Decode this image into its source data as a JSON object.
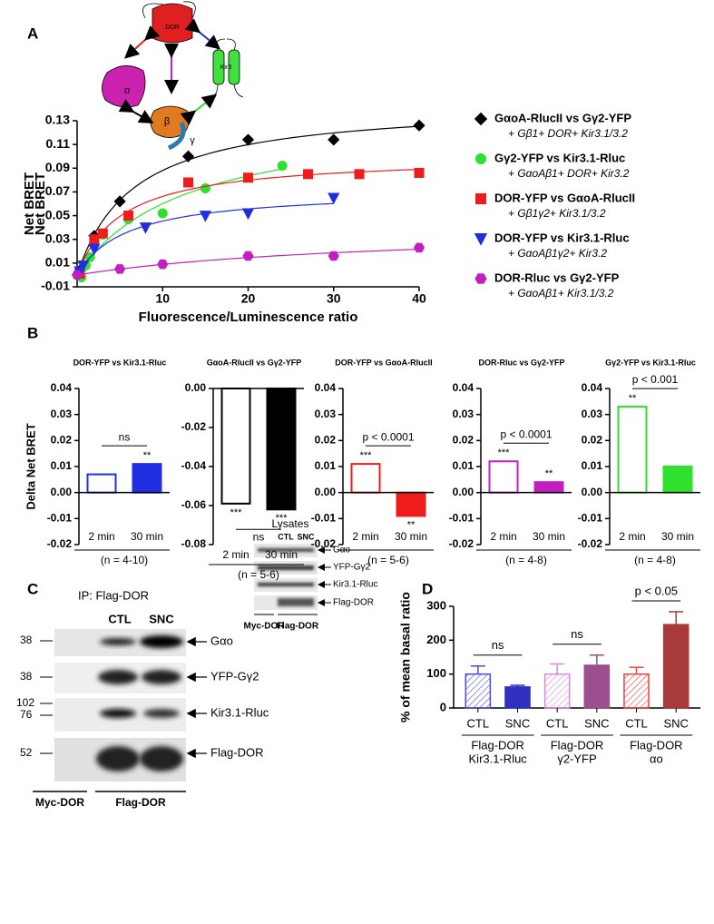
{
  "panel_labels": [
    "A",
    "B",
    "C",
    "D"
  ],
  "diagram": {
    "labels": [
      "DOR",
      "α",
      "β",
      "γ",
      "Kir3"
    ]
  },
  "chart_data": [
    {
      "type": "scatter",
      "xlabel": "Fluorescence/Luminescence ratio",
      "ylabel": "Net BRET",
      "xlim": [
        0,
        40
      ],
      "xticks": [
        10,
        20,
        30,
        40
      ],
      "ylim": [
        -0.01,
        0.13
      ],
      "yticks": [
        -0.01,
        0.01,
        0.03,
        0.05,
        0.07,
        0.09,
        0.11,
        0.13
      ],
      "series": [
        {
          "name": "GαoA-RlucII vs Gγ2-YFP",
          "note": "+ Gβ1+ DOR+ Kir3.1/3.2",
          "color": "#000000",
          "marker": "diamond",
          "x": [
            0.5,
            2,
            5,
            13,
            20,
            30,
            40
          ],
          "values": [
            0.005,
            0.033,
            0.062,
            0.1,
            0.114,
            0.114,
            0.126
          ]
        },
        {
          "name": "Gγ2-YFP vs Kir3.1-Rluc",
          "note": "+ GαoAβ1+ DOR+ Kir3.2",
          "color": "#2fe02f",
          "marker": "circle",
          "x": [
            0.5,
            1,
            1.5,
            3,
            6,
            10,
            15,
            24
          ],
          "values": [
            -0.002,
            0.008,
            0.015,
            0.034,
            0.047,
            0.052,
            0.073,
            0.092
          ]
        },
        {
          "name": "DOR-YFP vs GαoA-RlucII",
          "note": "+ Gβ1γ2+ Kir3.1/3.2",
          "color": "#ee1c1c",
          "marker": "square",
          "x": [
            0.3,
            2,
            3,
            6,
            13,
            20,
            27,
            33,
            40
          ],
          "values": [
            0.001,
            0.03,
            0.035,
            0.05,
            0.078,
            0.082,
            0.085,
            0.085,
            0.086
          ]
        },
        {
          "name": "DOR-YFP vs Kir3.1-Rluc",
          "note": "+ GαoAβ1γ2+ Kir3.2",
          "color": "#1f2fe0",
          "marker": "triangle",
          "x": [
            0.3,
            0.7,
            2,
            8,
            15,
            20,
            30
          ],
          "values": [
            0.003,
            0.008,
            0.022,
            0.04,
            0.05,
            0.052,
            0.065
          ]
        },
        {
          "name": "DOR-Rluc vs Gγ2-YFP",
          "note": "+ GαoAβ1+ Kir3.1/3.2",
          "color": "#c21fc2",
          "marker": "hexagon",
          "x": [
            0,
            5,
            10,
            20,
            30,
            40
          ],
          "values": [
            0,
            0.005,
            0.009,
            0.016,
            0.016,
            0.023
          ]
        }
      ]
    },
    {
      "type": "bar",
      "title": "DOR-YFP vs Kir3.1-Rluc",
      "ylabel": "Delta Net BRET",
      "categories": [
        "2 min",
        "30 min"
      ],
      "values": [
        0.007,
        0.011
      ],
      "color": "#1f2fe0",
      "fill_styles": [
        "hollow",
        "solid"
      ],
      "stars": [
        null,
        "**"
      ],
      "comparison": "ns",
      "n": "(n = 4-10)",
      "ylim": [
        -0.02,
        0.04
      ],
      "yticks": [
        -0.02,
        -0.01,
        {
          "value": 0,
          "label": "0.00"
        },
        0.01,
        0.02,
        0.03,
        0.04
      ]
    },
    {
      "type": "bar",
      "title": "GαoA-RlucII vs Gγ2-YFP",
      "categories": [
        "2 min",
        "30 min"
      ],
      "values": [
        -0.059,
        -0.062
      ],
      "color": "#000000",
      "fill_styles": [
        "hollow",
        "solid"
      ],
      "stars": [
        "***",
        "***"
      ],
      "comparison": "ns",
      "n": "(n = 5-6)",
      "ylim": [
        -0.08,
        0
      ],
      "yticks": [
        -0.08,
        -0.06,
        -0.04,
        -0.02,
        {
          "value": 0,
          "label": "0.00"
        }
      ]
    },
    {
      "type": "bar",
      "title": "DOR-YFP vs GαoA-RlucII",
      "categories": [
        "2 min",
        "30 min"
      ],
      "values": [
        0.011,
        -0.009
      ],
      "color": "#ee1c1c",
      "fill_styles": [
        "hollow",
        "solid"
      ],
      "stars": [
        "***",
        "**"
      ],
      "comparison": "p < 0.0001",
      "n": "(n = 5-6)",
      "ylim": [
        -0.02,
        0.04
      ],
      "yticks": [
        -0.02,
        -0.01,
        {
          "value": 0,
          "label": "0.00"
        },
        0.01,
        0.02,
        0.03,
        0.04
      ]
    },
    {
      "type": "bar",
      "title": "DOR-Rluc vs Gγ2-YFP",
      "categories": [
        "2 min",
        "30 min"
      ],
      "values": [
        0.012,
        0.004
      ],
      "color": "#c21fc2",
      "fill_styles": [
        "hollow",
        "solid"
      ],
      "stars": [
        "***",
        "**"
      ],
      "comparison": "p < 0.0001",
      "n": "(n = 4-8)",
      "ylim": [
        -0.02,
        0.04
      ],
      "yticks": [
        -0.02,
        -0.01,
        {
          "value": 0,
          "label": "0.00"
        },
        0.01,
        0.02,
        0.03,
        0.04
      ]
    },
    {
      "type": "bar",
      "title": "Gγ2-YFP vs Kir3.1-Rluc",
      "categories": [
        "2 min",
        "30 min"
      ],
      "values": [
        0.033,
        0.01
      ],
      "color": "#2fe02f",
      "fill_styles": [
        "hollow",
        "solid"
      ],
      "stars": [
        "**",
        null
      ],
      "comparison": "p < 0.001",
      "n": "(n = 4-8)",
      "ylim": [
        -0.02,
        0.04
      ],
      "yticks": [
        -0.02,
        -0.01,
        {
          "value": 0,
          "label": "0.00"
        },
        0.01,
        0.02,
        0.03,
        0.04
      ]
    },
    {
      "type": "errorbar",
      "ylabel": "% of mean basal ratio",
      "categories": [
        "CTL",
        "SNC",
        "CTL",
        "SNC",
        "CTL",
        "SNC"
      ],
      "values": [
        100,
        62,
        100,
        126,
        100,
        246
      ],
      "errors": [
        24,
        5,
        30,
        30,
        20,
        38
      ],
      "colors": [
        "#4a4ae0",
        "#3030c0",
        "#d98ad9",
        "#9c4f8f",
        "#f04040",
        "#a83a3a"
      ],
      "fill_styles": [
        "hatched",
        "solid",
        "hatched",
        "solid",
        "hatched",
        "solid"
      ],
      "comparisons": [
        "ns",
        "ns",
        "p < 0.05"
      ],
      "group_labels": [
        [
          "Flag-DOR",
          "Kir3.1-Rluc"
        ],
        [
          "Flag-DOR",
          "γ2-YFP"
        ],
        [
          "Flag-DOR",
          "αo"
        ]
      ],
      "ylim": [
        0,
        300
      ],
      "yticks": [
        0,
        100,
        200,
        300
      ]
    }
  ],
  "blot": {
    "title": "IP: Flag-DOR",
    "lanes": [
      "CTL",
      "SNC"
    ],
    "markers": [
      "38",
      "38",
      "102",
      "76",
      "52"
    ],
    "bands": [
      "Gαo",
      "YFP-Gγ2",
      "Kir3.1-Rluc",
      "Flag-DOR"
    ],
    "groups": [
      "Myc-DOR",
      "Flag-DOR"
    ],
    "lysates": {
      "title": "Lysates",
      "lanes": [
        "CTL",
        "SNC"
      ],
      "bands": [
        "Gαo",
        "YFP-Gγ2",
        "Kir3.1-Rluc",
        "Flag-DOR"
      ],
      "groups": [
        "Myc-DOR",
        "Flag-DOR"
      ]
    }
  }
}
